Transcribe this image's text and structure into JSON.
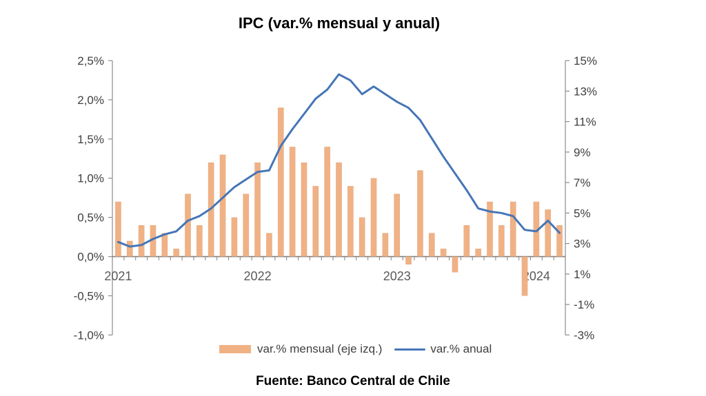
{
  "chart_data": {
    "type": "combo",
    "title": "IPC (var.% mensual y anual)",
    "categories": [
      "2021-01",
      "2021-02",
      "2021-03",
      "2021-04",
      "2021-05",
      "2021-06",
      "2021-07",
      "2021-08",
      "2021-09",
      "2021-10",
      "2021-11",
      "2021-12",
      "2022-01",
      "2022-02",
      "2022-03",
      "2022-04",
      "2022-05",
      "2022-06",
      "2022-07",
      "2022-08",
      "2022-09",
      "2022-10",
      "2022-11",
      "2022-12",
      "2023-01",
      "2023-02",
      "2023-03",
      "2023-04",
      "2023-05",
      "2023-06",
      "2023-07",
      "2023-08",
      "2023-09",
      "2023-10",
      "2023-11",
      "2023-12",
      "2024-01",
      "2024-02",
      "2024-03"
    ],
    "series": [
      {
        "name": "var.% mensual (eje izq.)",
        "type": "bar",
        "axis": "left",
        "color": "#F0B185",
        "values": [
          0.7,
          0.2,
          0.4,
          0.4,
          0.3,
          0.1,
          0.8,
          0.4,
          1.2,
          1.3,
          0.5,
          0.8,
          1.2,
          0.3,
          1.9,
          1.4,
          1.2,
          0.9,
          1.4,
          1.2,
          0.9,
          0.5,
          1.0,
          0.3,
          0.8,
          -0.1,
          1.1,
          0.3,
          0.1,
          -0.2,
          0.4,
          0.1,
          0.7,
          0.4,
          0.7,
          -0.5,
          0.7,
          0.6,
          0.4
        ]
      },
      {
        "name": "var.% anual",
        "type": "line",
        "axis": "right",
        "color": "#4575B7",
        "values": [
          3.1,
          2.8,
          2.9,
          3.3,
          3.6,
          3.8,
          4.5,
          4.8,
          5.3,
          6.0,
          6.7,
          7.2,
          7.7,
          7.8,
          9.4,
          10.5,
          11.5,
          12.5,
          13.1,
          14.1,
          13.7,
          12.8,
          13.3,
          12.8,
          12.3,
          11.9,
          11.1,
          9.9,
          8.7,
          7.6,
          6.5,
          5.3,
          5.1,
          5.0,
          4.8,
          3.9,
          3.8,
          4.5,
          3.7
        ]
      }
    ],
    "left_axis": {
      "min": -1.0,
      "max": 2.5,
      "step": 0.5,
      "tick_labels": [
        "2,5%",
        "2,0%",
        "1,5%",
        "1,0%",
        "0,5%",
        "0,0%",
        "-0,5%",
        "-1,0%"
      ]
    },
    "right_axis": {
      "min": -3,
      "max": 15,
      "step": 2,
      "tick_labels": [
        "15%",
        "13%",
        "11%",
        "9%",
        "7%",
        "5%",
        "3%",
        "1%",
        "-1%",
        "-3%"
      ]
    },
    "x_year_labels": [
      {
        "label": "2021",
        "month_index": 0
      },
      {
        "label": "2022",
        "month_index": 12
      },
      {
        "label": "2023",
        "month_index": 24
      },
      {
        "label": "2024",
        "month_index": 36
      }
    ],
    "grid": false,
    "legend_position": "bottom",
    "axis_color": "#8C8C8C",
    "zero_line_color": "#808080",
    "tick_label_color": "#3F3F3F",
    "year_label_color": "#595959"
  },
  "footer": {
    "source": "Fuente: Banco Central de Chile"
  }
}
